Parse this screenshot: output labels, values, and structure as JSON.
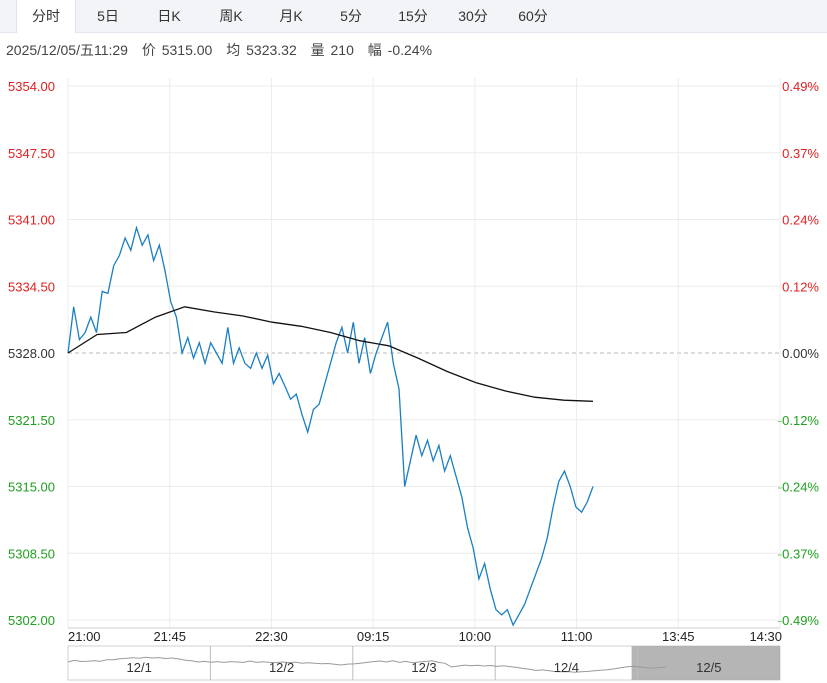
{
  "tabs": [
    "分时",
    "5日",
    "日K",
    "周K",
    "月K",
    "5分",
    "15分",
    "30分",
    "60分"
  ],
  "active_tab": 0,
  "info": {
    "datetime": "2025/12/05/五11:29",
    "price_label": "价",
    "price": "5315.00",
    "avg_label": "均",
    "avg": "5323.32",
    "vol_label": "量",
    "vol": "210",
    "chg_label": "幅",
    "chg": "-0.24%"
  },
  "colors": {
    "up": "#e02020",
    "down": "#20a020",
    "price_line": "#1a7fc2",
    "avg_line": "#111111",
    "grid": "#ececec"
  },
  "chart_data": {
    "type": "line",
    "ylim": [
      5302.0,
      5354.0
    ],
    "prev_close": 5328.0,
    "y_ticks_left": [
      "5354.00",
      "5347.50",
      "5341.00",
      "5334.50",
      "5328.00",
      "5321.50",
      "5315.00",
      "5308.50",
      "5302.00"
    ],
    "y_ticks_right": [
      "0.49%",
      "0.37%",
      "0.24%",
      "0.12%",
      "0.00%",
      "-0.12%",
      "-0.24%",
      "-0.37%",
      "-0.49%"
    ],
    "x_ticks": [
      "21:00",
      "21:45",
      "22:30",
      "09:15",
      "10:00",
      "11:00",
      "13:45",
      "14:30"
    ],
    "session_days": [
      "12/1",
      "12/2",
      "12/3",
      "12/4",
      "12/5"
    ],
    "series": [
      {
        "values": [
          5328.0,
          5332.5,
          5329.3,
          5330.0,
          5331.5,
          5330.0,
          5334.0,
          5333.8,
          5336.5,
          5337.5,
          5339.2,
          5338.0,
          5340.2,
          5338.5,
          5339.5,
          5337.0,
          5338.5,
          5336.0,
          5333.0,
          5331.5,
          5328.0,
          5329.5,
          5327.5,
          5329.0,
          5327.0,
          5329.0,
          5328.0,
          5327.0,
          5330.5,
          5327.0,
          5328.5,
          5327.0,
          5326.5,
          5328.0,
          5326.5,
          5327.8,
          5325.0,
          5326.0,
          5324.8,
          5323.5,
          5324.0,
          5322.0,
          5320.3,
          5322.5,
          5323.0,
          5325.0,
          5327.0,
          5329.0,
          5330.5,
          5328.0,
          5331.0,
          5327.0,
          5329.5,
          5326.0,
          5328.0,
          5329.5,
          5331.0,
          5327.0,
          5324.5,
          5315.0,
          5317.5,
          5320.0,
          5318.0,
          5319.5,
          5317.5,
          5319.0,
          5316.5,
          5318.0,
          5316.0,
          5314.0,
          5311.0,
          5309.0,
          5306.0,
          5307.5,
          5305.0,
          5303.0,
          5302.5,
          5303.0,
          5301.5,
          5302.5,
          5303.5,
          5305.0,
          5306.5,
          5308.0,
          5310.0,
          5313.0,
          5315.5,
          5316.5,
          5315.0,
          5313.0,
          5312.5,
          5313.5,
          5315.0
        ],
        "avg": [
          5328.0,
          5329.8,
          5330.0,
          5331.5,
          5332.5,
          5332.0,
          5331.6,
          5331.0,
          5330.6,
          5330.0,
          5329.2,
          5328.7,
          5327.5,
          5326.2,
          5325.1,
          5324.3,
          5323.7,
          5323.4,
          5323.3
        ]
      }
    ]
  },
  "navigator": {
    "days": [
      "12/1",
      "12/2",
      "12/3",
      "12/4",
      "12/5"
    ]
  }
}
